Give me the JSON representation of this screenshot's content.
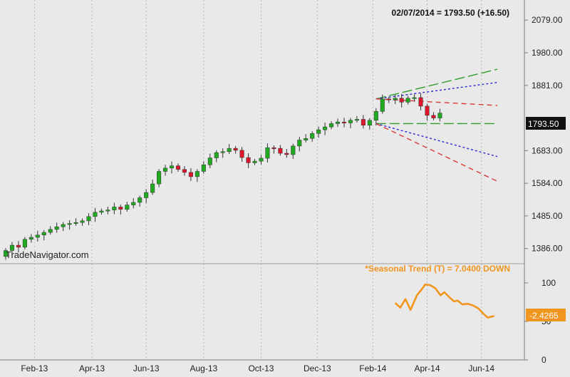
{
  "header": {
    "quote": "02/07/2014 = 1793.50 (+16.50)"
  },
  "watermark": "TradeNavigator.com",
  "indicator": {
    "label": "*Seasonal Trend (T) = 7.0400 DOWN",
    "last_value": "-2.4265"
  },
  "colors": {
    "background": "#e9e9e9",
    "up_candle": "#1faa1f",
    "down_candle": "#e0142a",
    "grid": "#b8b8b8",
    "seasonal": "#f0961e",
    "proj_green": "#2e9e2e",
    "proj_blue": "#2a2ad0",
    "proj_red": "#d83a3a"
  },
  "chart_data": [
    {
      "type": "candlestick",
      "title": "",
      "price_ticks": [
        "2079.00",
        "1980.00",
        "1881.00",
        "1793.50",
        "1683.00",
        "1584.00",
        "1485.00",
        "1386.00"
      ],
      "price_levels": [
        2079,
        1980,
        1881,
        1683,
        1584,
        1485,
        1386
      ],
      "last_price_label": "1793.50",
      "ylim": [
        1340,
        2140
      ],
      "x_ticks": [
        "Feb-13",
        "Apr-13",
        "Jun-13",
        "Aug-13",
        "Oct-13",
        "Dec-13",
        "Feb-14",
        "Apr-14",
        "Jun-14"
      ],
      "x_tick_weeks": [
        4.5,
        13.5,
        22,
        31,
        40,
        48.8,
        57.5,
        66,
        74.5
      ],
      "week_range": [
        0,
        79
      ],
      "close": [
        1380,
        1396,
        1390,
        1414,
        1420,
        1427,
        1435,
        1444,
        1452,
        1459,
        1462,
        1465,
        1470,
        1483,
        1496,
        1500,
        1503,
        1512,
        1505,
        1518,
        1526,
        1540,
        1556,
        1582,
        1620,
        1630,
        1637,
        1626,
        1617,
        1604,
        1620,
        1640,
        1661,
        1677,
        1680,
        1690,
        1684,
        1662,
        1646,
        1651,
        1660,
        1692,
        1690,
        1675,
        1671,
        1697,
        1715,
        1720,
        1735,
        1746,
        1755,
        1765,
        1770,
        1767,
        1775,
        1778,
        1760,
        1775,
        1802,
        1840,
        1837,
        1842,
        1830,
        1842,
        1844,
        1818,
        1790,
        1782,
        1797
      ],
      "projections": [
        {
          "name": "",
          "start_week": 58,
          "start": 1840,
          "end_week": 77,
          "end": 1930,
          "color": "proj_green",
          "dash": "long"
        },
        {
          "name": "",
          "start_week": 58,
          "start": 1840,
          "end_week": 77,
          "end": 1890,
          "color": "proj_blue",
          "dash": "short"
        },
        {
          "name": "",
          "start_week": 58,
          "start": 1840,
          "end_week": 77,
          "end": 1820,
          "color": "proj_red",
          "dash": "medium"
        },
        {
          "name": "",
          "start_week": 58,
          "start": 1765,
          "end_week": 77,
          "end": 1765,
          "color": "proj_green",
          "dash": "long"
        },
        {
          "name": "",
          "start_week": 58,
          "start": 1765,
          "end_week": 77,
          "end": 1665,
          "color": "proj_blue",
          "dash": "short"
        },
        {
          "name": "",
          "start_week": 58,
          "start": 1765,
          "end_week": 77,
          "end": 1590,
          "color": "proj_red",
          "dash": "medium"
        }
      ]
    },
    {
      "type": "line",
      "name": "Seasonal Trend",
      "y_ticks": [
        "100",
        "50",
        "0"
      ],
      "y_tick_values": [
        100,
        50,
        0
      ],
      "ylim": [
        0,
        125
      ],
      "x_weeks": [
        61,
        61.8,
        62.6,
        63.4,
        64.4,
        65,
        65.7,
        66.5,
        67.3,
        68.1,
        68.7,
        69.4,
        70.2,
        70.8,
        71.5,
        72.3,
        73.1,
        74,
        74.8,
        75.5,
        76.5
      ],
      "values": [
        74,
        68,
        79,
        65,
        84,
        90,
        98,
        97,
        93,
        84,
        88,
        82,
        76,
        77,
        72,
        73,
        71,
        67,
        60,
        55,
        57
      ]
    }
  ]
}
